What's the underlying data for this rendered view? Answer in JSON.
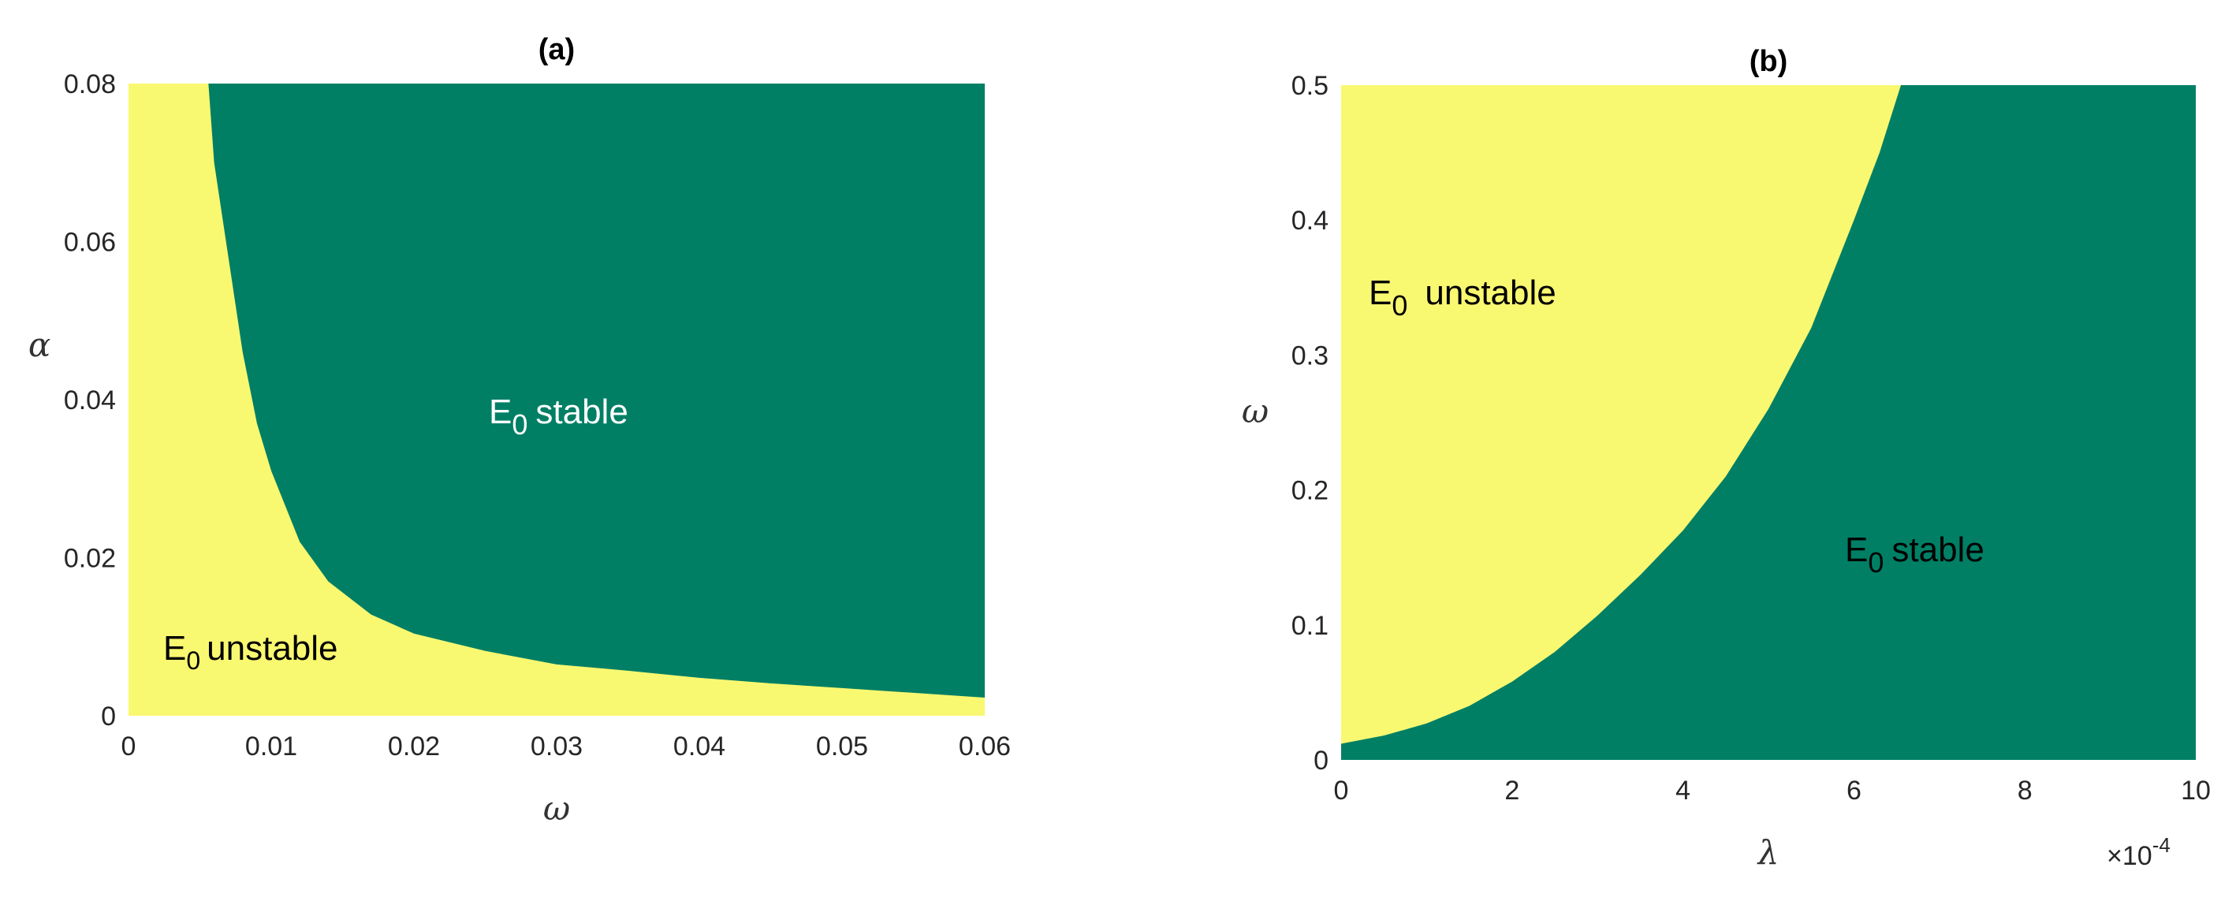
{
  "chart_data": [
    {
      "type": "heatmap",
      "title": "(a)",
      "xlabel": "ω",
      "ylabel": "α",
      "xlim": [
        0,
        0.06
      ],
      "ylim": [
        0,
        0.08
      ],
      "xticks": [
        "0",
        "0.01",
        "0.02",
        "0.03",
        "0.04",
        "0.05",
        "0.06"
      ],
      "yticks": [
        "0",
        "0.02",
        "0.04",
        "0.06",
        "0.08"
      ],
      "regions": [
        {
          "name": "E0 unstable",
          "label_main": "E",
          "label_sub": "0",
          "label_rest": "unstable",
          "color": "#F9F871"
        },
        {
          "name": "E0 stable",
          "label_main": "E",
          "label_sub": "0",
          "label_rest": "stable",
          "color": "#007F65"
        }
      ],
      "boundary": {
        "description": "alpha = f(omega), stable above curve",
        "points": [
          [
            0.0056,
            0.08
          ],
          [
            0.006,
            0.07
          ],
          [
            0.007,
            0.058
          ],
          [
            0.008,
            0.046
          ],
          [
            0.009,
            0.037
          ],
          [
            0.01,
            0.031
          ],
          [
            0.012,
            0.022
          ],
          [
            0.014,
            0.017
          ],
          [
            0.017,
            0.0128
          ],
          [
            0.02,
            0.0104
          ],
          [
            0.025,
            0.0082
          ],
          [
            0.03,
            0.0065
          ],
          [
            0.035,
            0.0057
          ],
          [
            0.04,
            0.0048
          ],
          [
            0.045,
            0.0041
          ],
          [
            0.05,
            0.0035
          ],
          [
            0.055,
            0.0029
          ],
          [
            0.06,
            0.0023
          ]
        ]
      },
      "grid": false
    },
    {
      "type": "heatmap",
      "title": "(b)",
      "xlabel": "λ",
      "ylabel": "ω",
      "xlim": [
        0,
        10
      ],
      "ylim": [
        0,
        0.5
      ],
      "x_multiplier": {
        "base": "×10",
        "exponent": "-4"
      },
      "xticks": [
        "0",
        "2",
        "4",
        "6",
        "8",
        "10"
      ],
      "yticks": [
        "0",
        "0.1",
        "0.2",
        "0.3",
        "0.4",
        "0.5"
      ],
      "regions": [
        {
          "name": "E0 unstable",
          "label_main": "E",
          "label_sub": "0",
          "label_rest": "unstable",
          "color": "#F9F871"
        },
        {
          "name": "E0 stable",
          "label_main": "E",
          "label_sub": "0",
          "label_rest": "stable",
          "color": "#007F65"
        }
      ],
      "boundary": {
        "description": "omega = f(lambda), unstable above curve",
        "points": [
          [
            0,
            0.012
          ],
          [
            0.5,
            0.018
          ],
          [
            1,
            0.027
          ],
          [
            1.5,
            0.04
          ],
          [
            2,
            0.058
          ],
          [
            2.5,
            0.08
          ],
          [
            3,
            0.107
          ],
          [
            3.5,
            0.137
          ],
          [
            4,
            0.17
          ],
          [
            4.5,
            0.21
          ],
          [
            5,
            0.26
          ],
          [
            5.5,
            0.32
          ],
          [
            6,
            0.4
          ],
          [
            6.3,
            0.45
          ],
          [
            6.55,
            0.5
          ]
        ]
      },
      "grid": false
    }
  ]
}
